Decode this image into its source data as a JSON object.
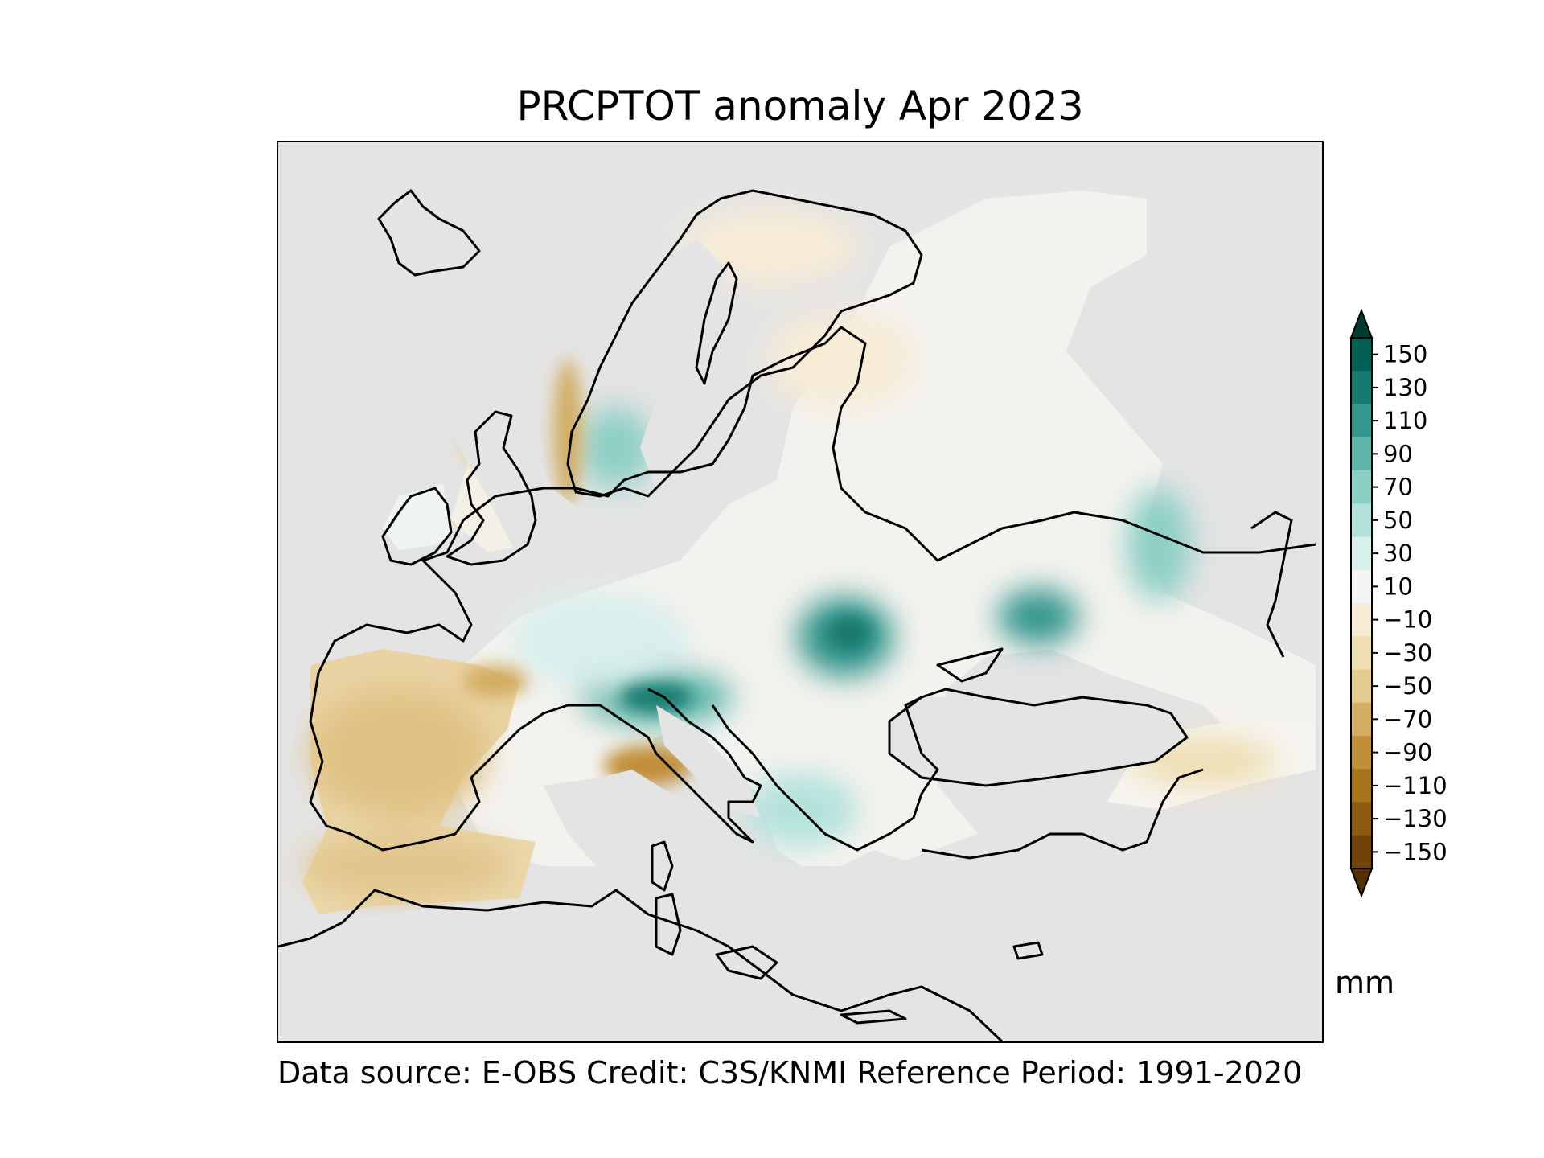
{
  "title": "PRCPTOT anomaly Apr 2023",
  "footer": "Data source: E-OBS  Credit: C3S/KNMI  Reference Period: 1991-2020",
  "colorbar": {
    "units": "mm",
    "min": -150,
    "max": 150,
    "step": 20,
    "extend": "both",
    "tick_labels": [
      "150",
      "130",
      "110",
      "90",
      "70",
      "50",
      "30",
      "10",
      "−10",
      "−30",
      "−50",
      "−70",
      "−90",
      "−110",
      "−130",
      "−150"
    ],
    "colors": [
      "#543005",
      "#704309",
      "#8c5a10",
      "#a8731d",
      "#c18f3a",
      "#d2ad63",
      "#e3ca8f",
      "#efdeb2",
      "#f7ecd6",
      "#f5f5f5",
      "#d8efec",
      "#b4e2db",
      "#8ccfc4",
      "#5fb5a9",
      "#36968d",
      "#167a70",
      "#015f53",
      "#003c30"
    ]
  },
  "map": {
    "region": "Europe",
    "background": "#e4e4e4",
    "coastline": "#000000",
    "anomaly_regions": [
      {
        "area": "Iberian Peninsula",
        "level": "dry"
      },
      {
        "area": "North Africa coast",
        "level": "dry"
      },
      {
        "area": "Southern France / NW Italy",
        "level": "very dry"
      },
      {
        "area": "Western Norway coast",
        "level": "very dry"
      },
      {
        "area": "Scotland",
        "level": "dry"
      },
      {
        "area": "Alps",
        "level": "very wet"
      },
      {
        "area": "Southern Norway inland",
        "level": "wet"
      },
      {
        "area": "Ukraine",
        "level": "very wet"
      },
      {
        "area": "Caucasus region",
        "level": "very wet"
      },
      {
        "area": "Central Russia",
        "level": "wet"
      },
      {
        "area": "Southeast Europe / Balkans",
        "level": "slightly wet"
      },
      {
        "area": "Northern Turkey",
        "level": "dry"
      }
    ]
  }
}
